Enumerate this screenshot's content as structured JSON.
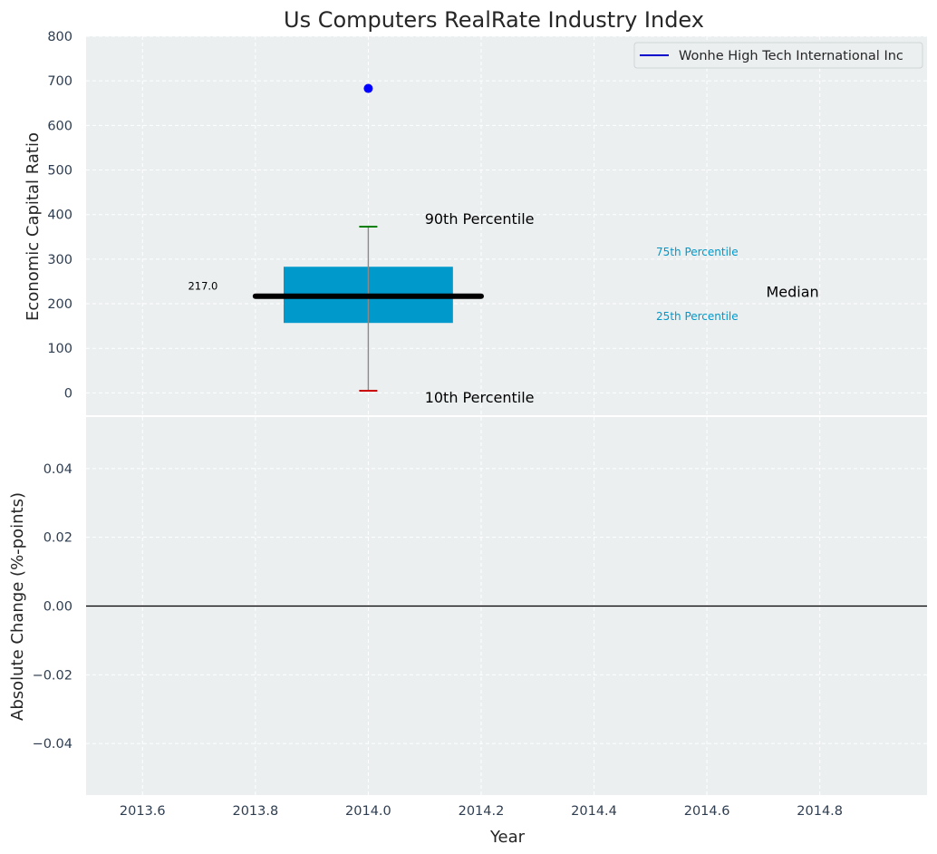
{
  "chart_data": [
    {
      "type": "box",
      "title": "Us Computers RealRate Industry Index",
      "ylabel": "Economic Capital Ratio",
      "ylim": [
        -50,
        800
      ],
      "yticks": [
        0,
        100,
        200,
        300,
        400,
        500,
        600,
        700,
        800
      ],
      "grid": true,
      "legend": {
        "position": "top-right",
        "entries": [
          "Wonhe High Tech International Inc"
        ]
      },
      "series": [
        {
          "name": "Wonhe High Tech International Inc",
          "x": 2014.0,
          "p10": 5,
          "p25": 157,
          "median": 217,
          "p75": 283,
          "p90": 373,
          "point": 683
        }
      ],
      "median_label": "217.0",
      "annotations": {
        "p90": "90th Percentile",
        "p10": "10th Percentile",
        "p75": "75th Percentile",
        "p25": "25th Percentile",
        "median": "Median"
      }
    },
    {
      "type": "line",
      "ylabel": "Absolute Change (%-points)",
      "xlabel": "Year",
      "xlim": [
        2013.5,
        2014.99
      ],
      "ylim": [
        -0.055,
        0.055
      ],
      "xticks": [
        "2013.6",
        "2013.8",
        "2014.0",
        "2014.2",
        "2014.4",
        "2014.6",
        "2014.8"
      ],
      "yticks": [
        "0.04",
        "0.02",
        "0.00",
        "−0.02",
        "−0.04"
      ],
      "grid": true,
      "reference_line": 0
    }
  ],
  "colors": {
    "background": "#ebeff0",
    "box": "#0099cc",
    "median": "#000000",
    "p90_cap": "#008000",
    "p10_cap": "#cc0000",
    "point": "#0000ff",
    "legend_line": "#0000cc",
    "tick_text": "#2e3d50",
    "small_labels": "#0099cc"
  }
}
